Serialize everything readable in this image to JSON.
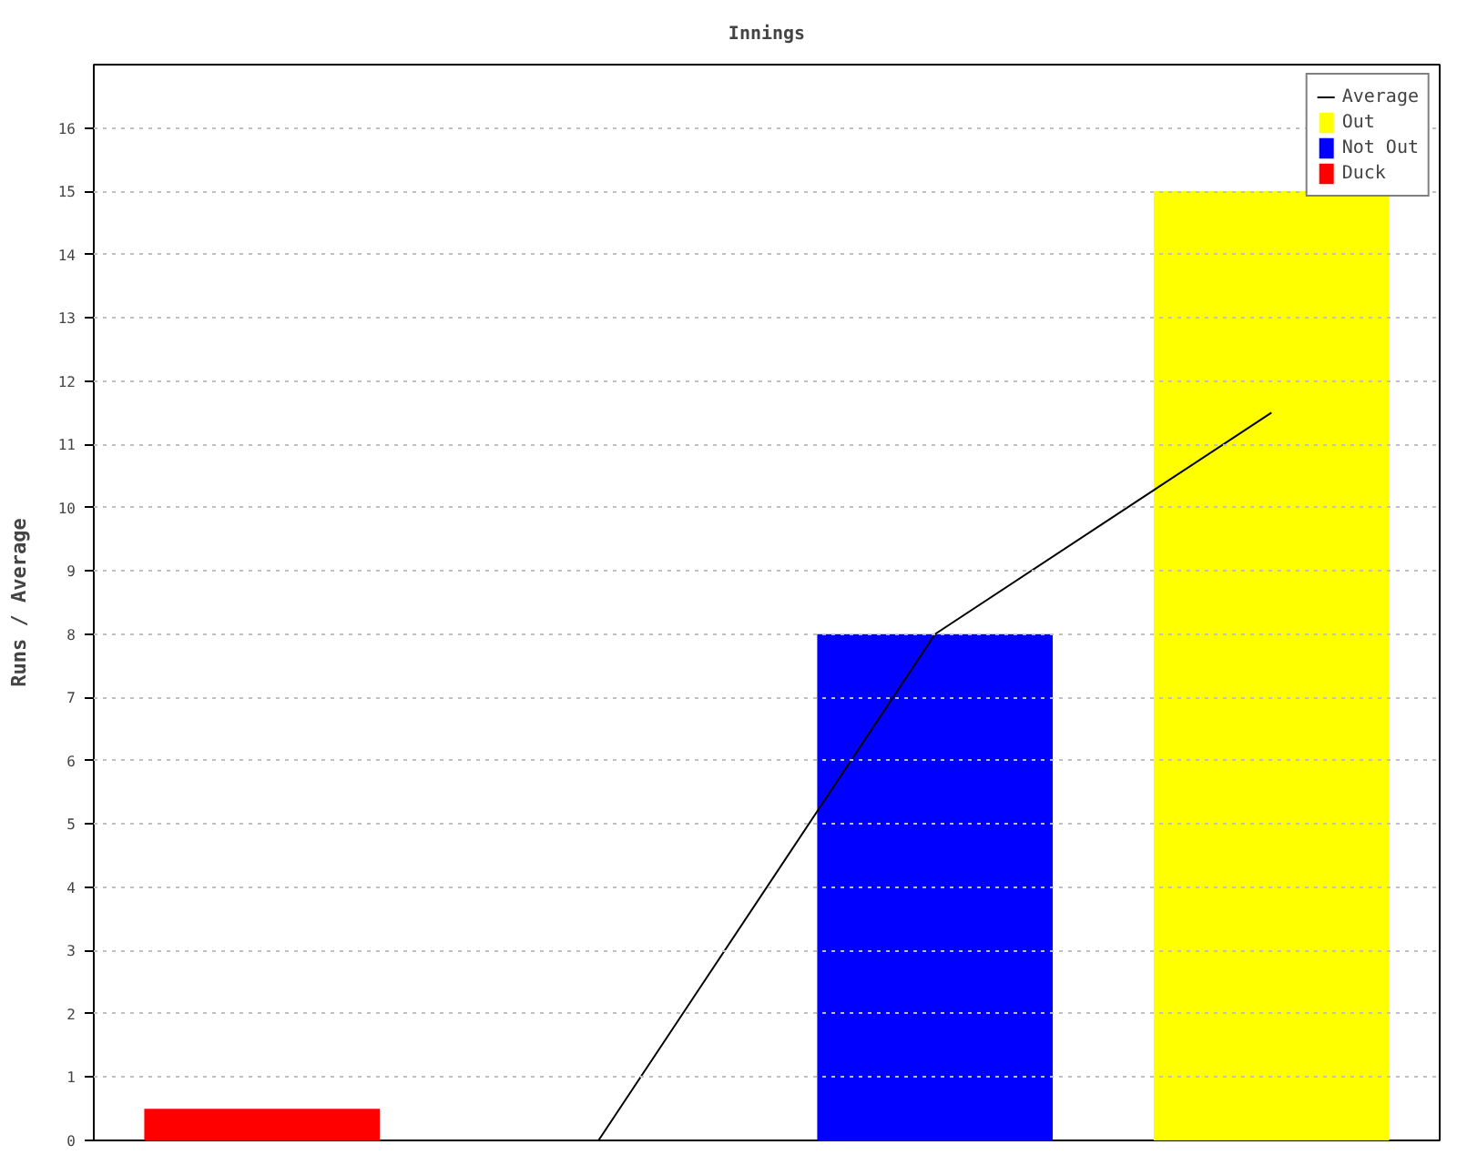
{
  "chart_data": {
    "type": "bar",
    "title": "Innings",
    "ylabel": "Runs / Average",
    "categories": [
      null,
      null,
      null,
      null
    ],
    "series": [
      {
        "name": "Average",
        "type": "line",
        "color": "#000000",
        "values": [
          null,
          0,
          8,
          11.5
        ]
      },
      {
        "name": "Out",
        "color": "#ffff00",
        "values": [
          null,
          null,
          null,
          15
        ]
      },
      {
        "name": "Not Out",
        "color": "#0000ff",
        "values": [
          null,
          null,
          8,
          null
        ]
      },
      {
        "name": "Duck",
        "color": "#ff0000",
        "values": [
          0.5,
          null,
          null,
          null
        ]
      }
    ],
    "stacked": true,
    "ylim": [
      0,
      17
    ],
    "yticks": [
      0,
      1,
      2,
      3,
      4,
      5,
      6,
      7,
      8,
      9,
      10,
      11,
      12,
      13,
      14,
      15,
      16
    ],
    "grid": "y",
    "legend": "top right",
    "tick_labels": "y",
    "line_style": "solid"
  }
}
